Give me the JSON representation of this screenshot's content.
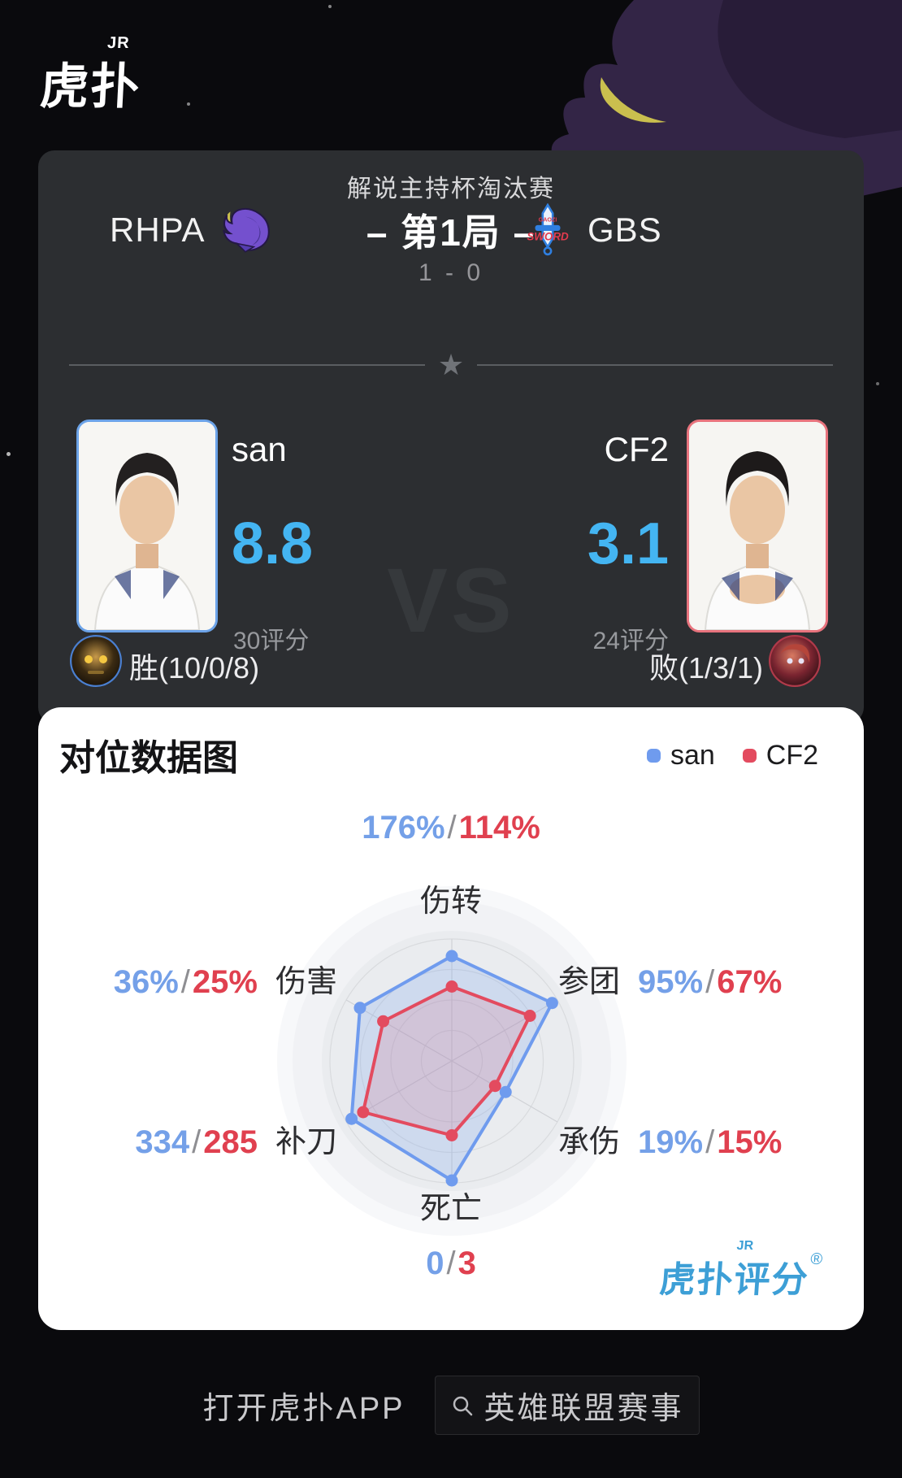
{
  "brand": {
    "logo_main": "虎扑",
    "logo_sub": "JR"
  },
  "sep": "/",
  "match_card": {
    "title": "解说主持杯淘汰赛",
    "left_team": "RHPA",
    "right_team": "GBS",
    "right_team_logo_top": "GAOZI",
    "right_team_logo_main": "SWORD",
    "game_label": "– 第1局 –",
    "score": "1 - 0",
    "vs_watermark": "VS",
    "left_player": {
      "name": "san",
      "rating": "8.8",
      "rating_count": "30评分",
      "result": "胜(10/0/8)"
    },
    "right_player": {
      "name": "CF2",
      "rating": "3.1",
      "rating_count": "24评分",
      "result": "败(1/3/1)"
    },
    "rating_color": "#44b5f2"
  },
  "radar_card": {
    "title": "对位数据图",
    "legend_left": "san",
    "legend_right": "CF2",
    "brand_watermark": "虎扑评分",
    "brand_watermark_sub": "JR",
    "registered_mark": "®"
  },
  "chart_data": {
    "type": "radar",
    "axes": [
      "伤转",
      "参团",
      "承伤",
      "死亡",
      "补刀",
      "伤害"
    ],
    "axes_order": "clockwise from top",
    "series": [
      {
        "name": "san",
        "color": "#6f9bee",
        "fill_opacity": 0.22,
        "values_display": [
          "176%",
          "95%",
          "19%",
          "0",
          "334",
          "36%"
        ],
        "radar_radii": [
          0.86,
          0.95,
          0.51,
          0.98,
          0.95,
          0.87
        ]
      },
      {
        "name": "CF2",
        "color": "#e34b5f",
        "fill_opacity": 0.15,
        "values_display": [
          "114%",
          "67%",
          "15%",
          "3",
          "285",
          "25%"
        ],
        "radar_radii": [
          0.61,
          0.74,
          0.41,
          0.61,
          0.84,
          0.65
        ]
      }
    ],
    "stats": [
      {
        "axis": "伤转",
        "san": "176%",
        "cf2": "114%"
      },
      {
        "axis": "参团",
        "san": "95%",
        "cf2": "67%"
      },
      {
        "axis": "承伤",
        "san": "19%",
        "cf2": "15%"
      },
      {
        "axis": "死亡",
        "san": "0",
        "cf2": "3"
      },
      {
        "axis": "补刀",
        "san": "334",
        "cf2": "285"
      },
      {
        "axis": "伤害",
        "san": "36%",
        "cf2": "25%"
      }
    ],
    "grid": {
      "rings": 4,
      "spokes": 6,
      "max_radius_px": 150
    }
  },
  "footer": {
    "open_app": "打开虎扑APP",
    "search_label": "英雄联盟赛事"
  }
}
